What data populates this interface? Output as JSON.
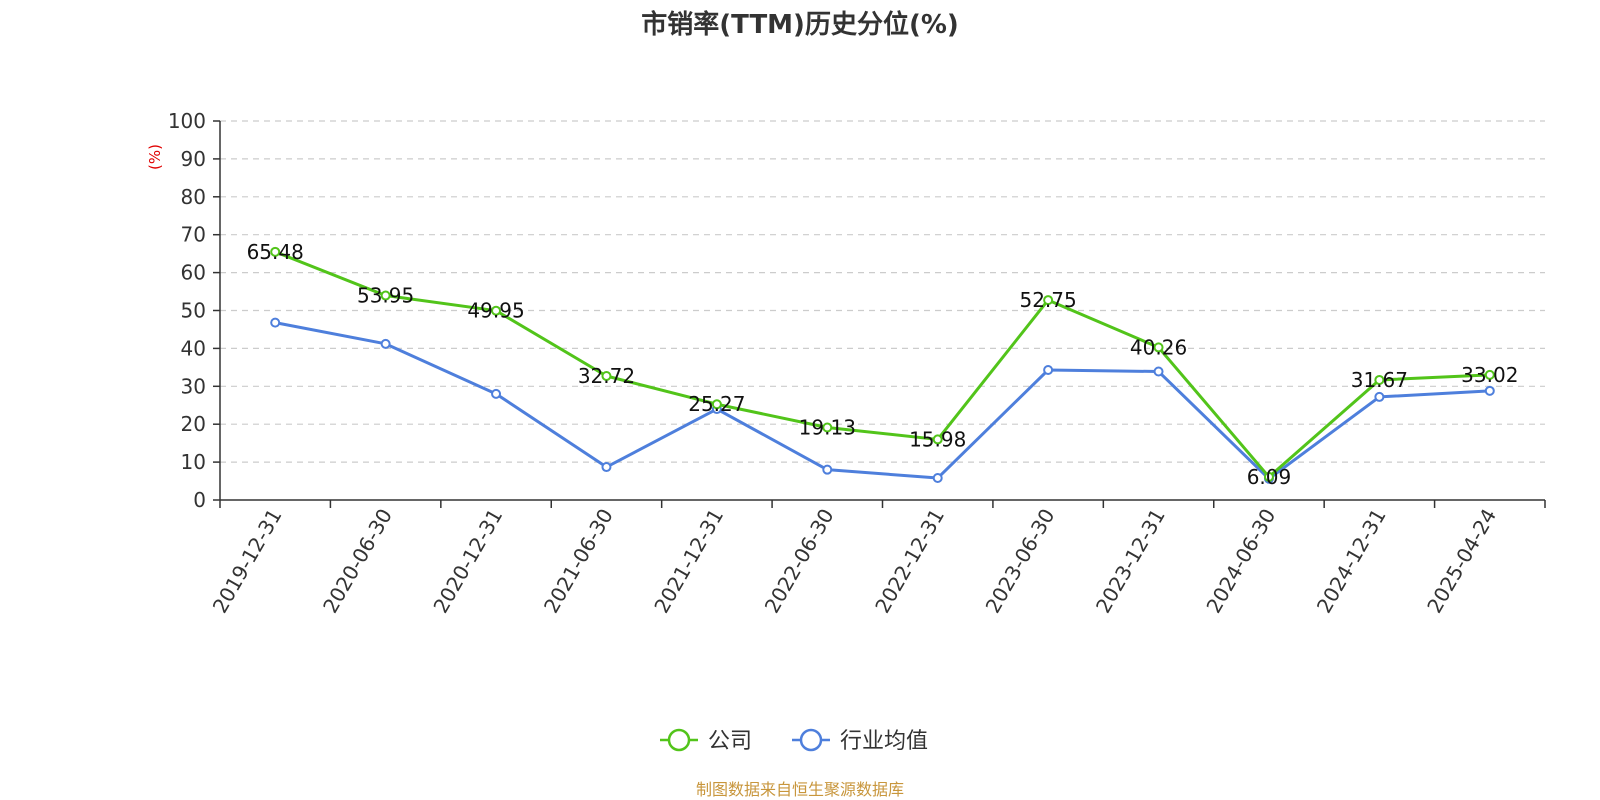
{
  "chart_data": {
    "type": "line",
    "title": "市销率(TTM)历史分位(%)",
    "ylabel": "(%)",
    "ylim": [
      0,
      100
    ],
    "yticks": [
      0,
      10,
      20,
      30,
      40,
      50,
      60,
      70,
      80,
      90,
      100
    ],
    "categories": [
      "2019-12-31",
      "2020-06-30",
      "2020-12-31",
      "2021-06-30",
      "2021-12-31",
      "2022-06-30",
      "2022-12-31",
      "2023-06-30",
      "2023-12-31",
      "2024-06-30",
      "2024-12-31",
      "2025-04-24"
    ],
    "series": [
      {
        "name": "公司",
        "color": "#52c41a",
        "values": [
          65.48,
          53.95,
          49.95,
          32.72,
          25.27,
          19.13,
          15.98,
          52.75,
          40.26,
          6.09,
          31.67,
          33.02
        ],
        "labels": [
          "65.48",
          "53.95",
          "49.95",
          "32.72",
          "25.27",
          "19.13",
          "15.98",
          "52.75",
          "40.26",
          "6.09",
          "31.67",
          "33.02"
        ]
      },
      {
        "name": "行业均值",
        "color": "#4e7fdc",
        "values": [
          46.8,
          41.2,
          28.0,
          8.7,
          24.0,
          8.0,
          5.8,
          34.3,
          33.9,
          5.6,
          27.2,
          28.8
        ]
      }
    ],
    "grid": "horizontal-dashed",
    "legend": "bottom-center",
    "unit_color": "#e00000"
  },
  "source": {
    "text": "制图数据来自恒生聚源数据库",
    "color": "#c8963c"
  }
}
